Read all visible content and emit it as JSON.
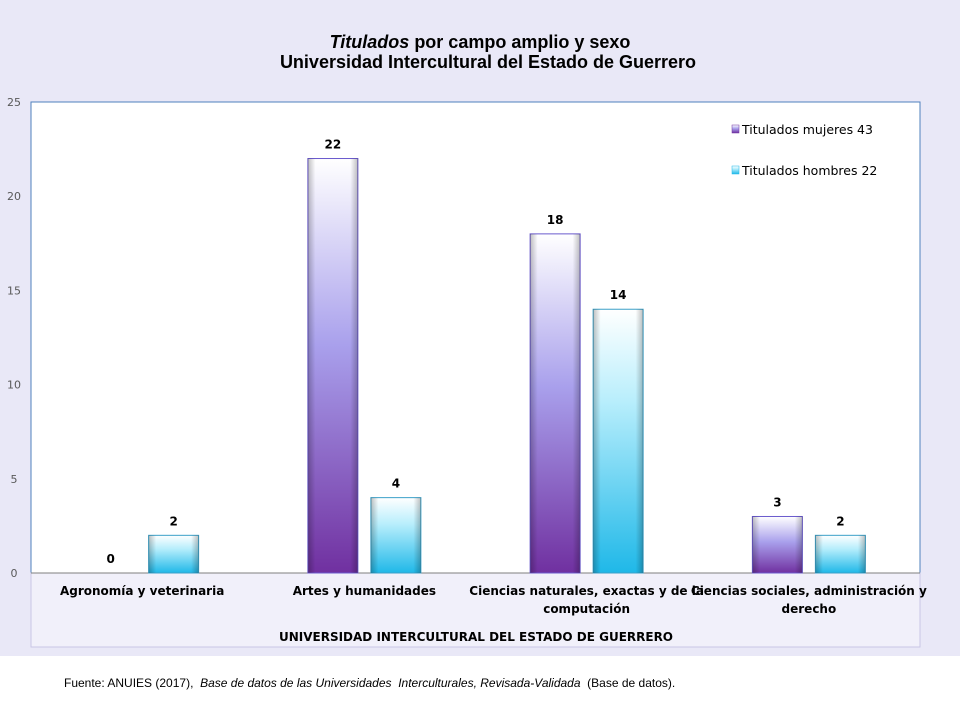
{
  "chart_data": {
    "type": "bar",
    "title_line1_italic": "Titulados",
    "title_line1_rest": " por campo amplio  y sexo",
    "title_line2": "Universidad Intercultural del Estado de Guerrero",
    "categories": [
      [
        "Agronomía y veterinaria"
      ],
      [
        "Artes y humanidades"
      ],
      [
        "Ciencias naturales, exactas y de la",
        "computación"
      ],
      [
        "Ciencias sociales, administración y",
        "derecho"
      ]
    ],
    "group_label": "UNIVERSIDAD INTERCULTURAL DEL ESTADO DE GUERRERO",
    "series": [
      {
        "name": "Titulados mujeres 43",
        "values": [
          0,
          22,
          18,
          3
        ],
        "color": "#7b3fb3"
      },
      {
        "name": "Titulados hombres 22",
        "values": [
          2,
          4,
          14,
          2
        ],
        "color": "#2fb5e6"
      }
    ],
    "ylim": [
      0,
      25
    ],
    "yticks": [
      "0",
      "5",
      "10",
      "15",
      "20",
      "25"
    ],
    "legend_position": "top-right",
    "grid": false
  },
  "footer": {
    "source_prefix": "Fuente: ANUIES (2017),  ",
    "source_italic": "Base de datos de las Universidades  Interculturales, Revisada-Validada",
    "source_suffix": "  (Base de datos)."
  }
}
